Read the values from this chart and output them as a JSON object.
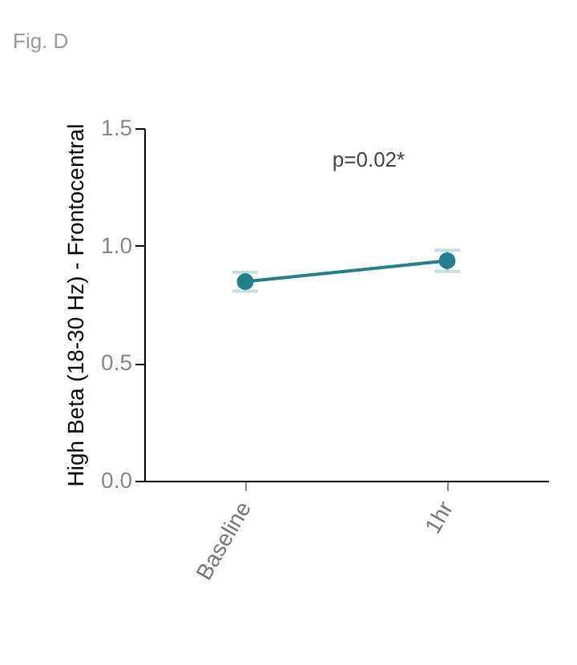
{
  "chart_data": {
    "type": "line",
    "title": "Fig. D",
    "ylabel": "High Beta (18-30 Hz) - Frontocentral",
    "categories": [
      "Baseline",
      "1hr"
    ],
    "series": [
      {
        "color": "#237f8b",
        "values": [
          0.847,
          0.936
        ],
        "errors": [
          0.04,
          0.045
        ]
      }
    ],
    "ylim": [
      0,
      1.5
    ],
    "yticks": [
      {
        "value": 0,
        "label": "0.0"
      },
      {
        "value": 0.5,
        "label": "0.5"
      },
      {
        "value": 1,
        "label": "1.0"
      },
      {
        "value": 1.5,
        "label": "1.5"
      }
    ],
    "annotations": [
      "p=0.02*"
    ],
    "grid": false,
    "marker": "circle",
    "legend": false
  }
}
